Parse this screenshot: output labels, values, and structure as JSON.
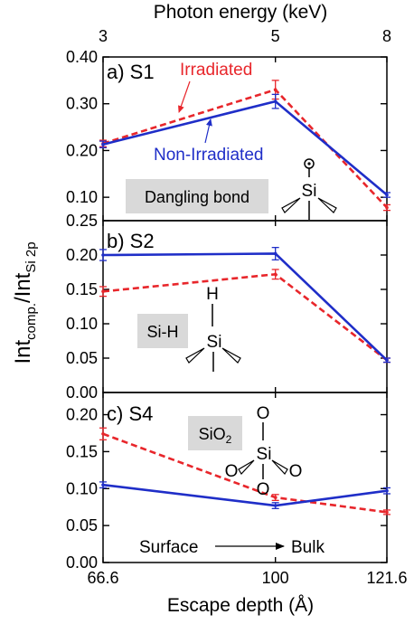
{
  "figure": {
    "top_axis_label": "Photon energy (keV)",
    "bottom_axis_label": "Escape depth (Å)",
    "y_axis_label_main": "Int",
    "y_axis_label_sub1": "comp.",
    "y_axis_label_mid": "/Int",
    "y_axis_label_sub2": "Si 2p",
    "top_ticks": [
      "3",
      "5",
      "8"
    ],
    "bottom_ticks": [
      "66.6",
      "100",
      "121.6"
    ],
    "colors": {
      "irradiated": "#e8262b",
      "non_irradiated": "#1f2ec8",
      "box_fill": "#d9d9d9"
    }
  },
  "chart_data": [
    {
      "type": "line",
      "panel_label": "a) S1",
      "box_label": "Dangling bond",
      "x": [
        66.6,
        100,
        121.6
      ],
      "xlim": [
        66.6,
        121.6
      ],
      "top_x_labels": [
        "3",
        "5",
        "8"
      ],
      "ylim": [
        0.05,
        0.4
      ],
      "yticks": [
        "0.10",
        "0.20",
        "0.30",
        "0.40"
      ],
      "series": [
        {
          "name": "Irradiated",
          "style": "dashed",
          "values": [
            0.215,
            0.33,
            0.078
          ],
          "errors": [
            0.007,
            0.02,
            0.006
          ]
        },
        {
          "name": "Non-Irradiated",
          "style": "solid",
          "values": [
            0.213,
            0.305,
            0.105
          ],
          "errors": [
            0.007,
            0.015,
            0.005
          ]
        }
      ],
      "annotations": [
        "Irradiated",
        "Non-Irradiated"
      ]
    },
    {
      "type": "line",
      "panel_label": "b) S2",
      "box_label": "Si-H",
      "x": [
        66.6,
        100,
        121.6
      ],
      "xlim": [
        66.6,
        121.6
      ],
      "ylim": [
        0.0,
        0.25
      ],
      "yticks": [
        "0.00",
        "0.05",
        "0.10",
        "0.15",
        "0.20",
        "0.25"
      ],
      "series": [
        {
          "style": "dashed",
          "values": [
            0.147,
            0.172,
            0.047
          ],
          "errors": [
            0.007,
            0.007,
            0.003
          ]
        },
        {
          "style": "solid",
          "values": [
            0.2,
            0.202,
            0.047
          ],
          "errors": [
            0.008,
            0.009,
            0.003
          ]
        }
      ]
    },
    {
      "type": "line",
      "panel_label": "c) S4",
      "box_label_main": "SiO",
      "box_label_sub": "2",
      "x": [
        66.6,
        100,
        121.6
      ],
      "xlim": [
        66.6,
        121.6
      ],
      "ylim": [
        0.0,
        0.23
      ],
      "yticks": [
        "0.00",
        "0.05",
        "0.10",
        "0.15",
        "0.20"
      ],
      "series": [
        {
          "style": "dashed",
          "values": [
            0.174,
            0.088,
            0.068
          ],
          "errors": [
            0.008,
            0.004,
            0.003
          ]
        },
        {
          "style": "solid",
          "values": [
            0.105,
            0.077,
            0.097
          ],
          "errors": [
            0.004,
            0.004,
            0.004
          ]
        }
      ],
      "annotations": [
        "Surface",
        "Bulk"
      ]
    }
  ],
  "molecules": {
    "si": "Si",
    "h": "H",
    "o": "O"
  }
}
